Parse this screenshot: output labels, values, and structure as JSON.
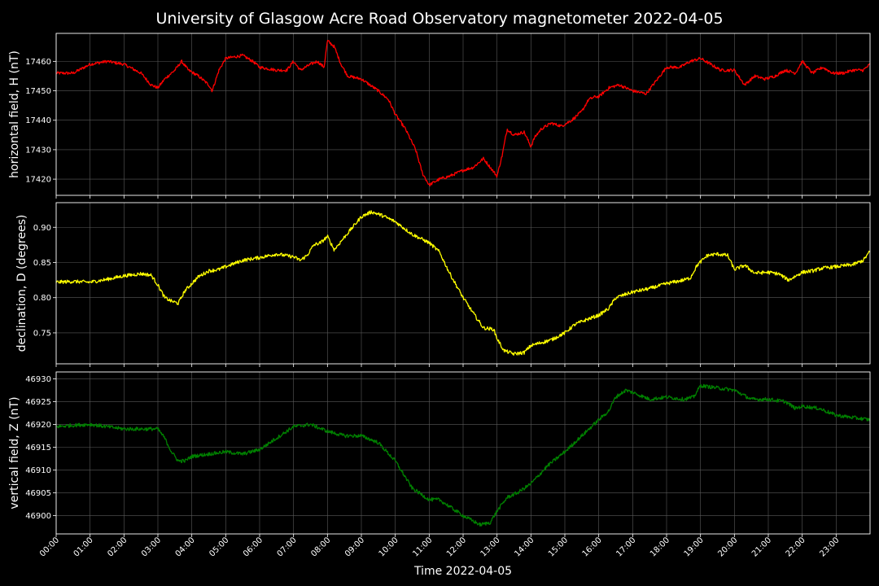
{
  "chart_data": {
    "type": "line",
    "title": "University of Glasgow Acre Road Observatory magnetometer 2022-04-05",
    "xlabel": "Time 2022-04-05",
    "x_tick_labels": [
      "00:00",
      "01:00",
      "02:00",
      "03:00",
      "04:00",
      "05:00",
      "06:00",
      "07:00",
      "08:00",
      "09:00",
      "10:00",
      "11:00",
      "12:00",
      "13:00",
      "14:00",
      "15:00",
      "16:00",
      "17:00",
      "18:00",
      "19:00",
      "20:00",
      "21:00",
      "22:00",
      "23:00"
    ],
    "xlim_hours": [
      0,
      24
    ],
    "grid": true,
    "panels": [
      {
        "ylabel": "horizontal field, H (nT)",
        "color": "#ff0000",
        "ylim": [
          17414.5,
          17469.5
        ],
        "y_ticks": [
          17420,
          17430,
          17440,
          17450,
          17460
        ],
        "y_tick_labels": [
          "17420",
          "17430",
          "17440",
          "17450",
          "17460"
        ],
        "noise": 0.5,
        "x": [
          0,
          0.5,
          1,
          1.5,
          2,
          2.5,
          2.8,
          3,
          3.2,
          3.5,
          3.7,
          3.9,
          4.2,
          4.5,
          4.6,
          4.8,
          5,
          5.5,
          5.8,
          6,
          6.5,
          6.8,
          7,
          7.2,
          7.5,
          7.7,
          7.9,
          8,
          8.2,
          8.4,
          8.6,
          9,
          9.5,
          9.8,
          10,
          10.3,
          10.6,
          10.8,
          11,
          11.3,
          11.6,
          12,
          12.3,
          12.6,
          12.8,
          13,
          13.15,
          13.3,
          13.5,
          13.8,
          14,
          14.1,
          14.3,
          14.6,
          14.9,
          15.2,
          15.5,
          15.7,
          15.9,
          16,
          16.3,
          16.6,
          17,
          17.4,
          17.8,
          18,
          18.4,
          18.7,
          19,
          19.3,
          19.6,
          19.8,
          20,
          20.3,
          20.6,
          20.9,
          21.2,
          21.5,
          21.8,
          22,
          22.3,
          22.6,
          22.9,
          23.2,
          23.5,
          23.8,
          24
        ],
        "values": [
          17456,
          17456,
          17459,
          17460,
          17459,
          17456,
          17452,
          17451,
          17454,
          17457,
          17460,
          17457,
          17455,
          17452,
          17450,
          17457,
          17461,
          17462,
          17460,
          17458,
          17457,
          17457,
          17460,
          17457,
          17459,
          17460,
          17458,
          17467,
          17465,
          17459,
          17455,
          17454,
          17450,
          17447,
          17442,
          17437,
          17430,
          17422,
          17418,
          17420,
          17421,
          17423,
          17424,
          17427,
          17424,
          17421,
          17428,
          17437,
          17435,
          17436,
          17431,
          17434,
          17437,
          17439,
          17438,
          17440,
          17443,
          17447,
          17448,
          17448,
          17451,
          17452,
          17450,
          17449,
          17455,
          17458,
          17458,
          17460,
          17461,
          17459,
          17457,
          17457,
          17457,
          17452,
          17455,
          17454,
          17455,
          17457,
          17456,
          17460,
          17456,
          17458,
          17456,
          17456,
          17457,
          17457,
          17459
        ]
      },
      {
        "ylabel": "declination, D (degrees)",
        "color": "#ffff00",
        "ylim": [
          0.706,
          0.935
        ],
        "y_ticks": [
          0.75,
          0.8,
          0.85,
          0.9
        ],
        "y_tick_labels": [
          "0.75",
          "0.80",
          "0.85",
          "0.90"
        ],
        "noise": 0.0025,
        "x": [
          0,
          0.5,
          1,
          1.5,
          2,
          2.5,
          2.8,
          3,
          3.2,
          3.4,
          3.6,
          3.8,
          4.2,
          4.5,
          4.8,
          5,
          5.5,
          6,
          6.5,
          7,
          7.2,
          7.4,
          7.6,
          7.8,
          8,
          8.2,
          8.5,
          9,
          9.3,
          9.6,
          10,
          10.5,
          11,
          11.3,
          11.6,
          12,
          12.3,
          12.6,
          12.9,
          13,
          13.2,
          13.5,
          13.8,
          14,
          14.3,
          14.6,
          15,
          15.3,
          15.6,
          16,
          16.3,
          16.5,
          17,
          17.5,
          18,
          18.5,
          18.7,
          18.9,
          19.2,
          19.5,
          19.8,
          20,
          20.3,
          20.6,
          21,
          21.3,
          21.6,
          22,
          22.3,
          22.6,
          23,
          23.5,
          23.8,
          24
        ],
        "values": [
          0.822,
          0.823,
          0.822,
          0.826,
          0.831,
          0.834,
          0.832,
          0.818,
          0.8,
          0.795,
          0.792,
          0.81,
          0.83,
          0.838,
          0.84,
          0.844,
          0.853,
          0.857,
          0.862,
          0.858,
          0.853,
          0.86,
          0.875,
          0.878,
          0.887,
          0.868,
          0.886,
          0.915,
          0.922,
          0.917,
          0.908,
          0.89,
          0.878,
          0.865,
          0.835,
          0.8,
          0.778,
          0.757,
          0.755,
          0.742,
          0.725,
          0.72,
          0.722,
          0.732,
          0.736,
          0.74,
          0.75,
          0.762,
          0.768,
          0.775,
          0.785,
          0.8,
          0.808,
          0.813,
          0.82,
          0.825,
          0.828,
          0.846,
          0.86,
          0.862,
          0.86,
          0.84,
          0.846,
          0.835,
          0.836,
          0.834,
          0.825,
          0.836,
          0.838,
          0.842,
          0.844,
          0.847,
          0.853,
          0.866
        ]
      },
      {
        "ylabel": "vertical field, Z (nT)",
        "color": "#008000",
        "ylim": [
          46896,
          46931.5
        ],
        "y_ticks": [
          46900,
          46905,
          46910,
          46915,
          46920,
          46925,
          46930
        ],
        "y_tick_labels": [
          "46900",
          "46905",
          "46910",
          "46915",
          "46920",
          "46925",
          "46930"
        ],
        "noise": 0.4,
        "x": [
          0,
          0.5,
          1,
          1.5,
          2,
          2.5,
          3,
          3.2,
          3.4,
          3.6,
          3.8,
          4,
          4.5,
          5,
          5.5,
          6,
          6.5,
          7,
          7.5,
          8,
          8.5,
          9,
          9.5,
          10,
          10.5,
          11,
          11.3,
          11.6,
          12,
          12.5,
          12.8,
          13,
          13.3,
          13.6,
          14,
          14.5,
          15,
          15.5,
          16,
          16.3,
          16.5,
          16.8,
          17,
          17.5,
          18,
          18.5,
          18.8,
          19,
          19.5,
          20,
          20.5,
          21,
          21.5,
          21.8,
          22,
          22.5,
          23,
          23.5,
          24
        ],
        "values": [
          46919.5,
          46919.8,
          46920,
          46919.5,
          46919,
          46919,
          46919,
          46917,
          46914,
          46912,
          46912,
          46913,
          46913.5,
          46914,
          46913.5,
          46914.5,
          46917,
          46919.5,
          46920,
          46918.5,
          46917.5,
          46917.5,
          46916,
          46912,
          46906,
          46903.5,
          46903.5,
          46902,
          46900,
          46898,
          46898.5,
          46901,
          46904,
          46905,
          46907,
          46911,
          46914,
          46917.5,
          46921,
          46923,
          46926,
          46927.5,
          46927,
          46925.5,
          46926,
          46925.5,
          46926,
          46928.5,
          46928,
          46927.5,
          46925.5,
          46925.5,
          46925,
          46923.5,
          46924,
          46923.5,
          46922,
          46921.5,
          46921
        ]
      }
    ]
  }
}
